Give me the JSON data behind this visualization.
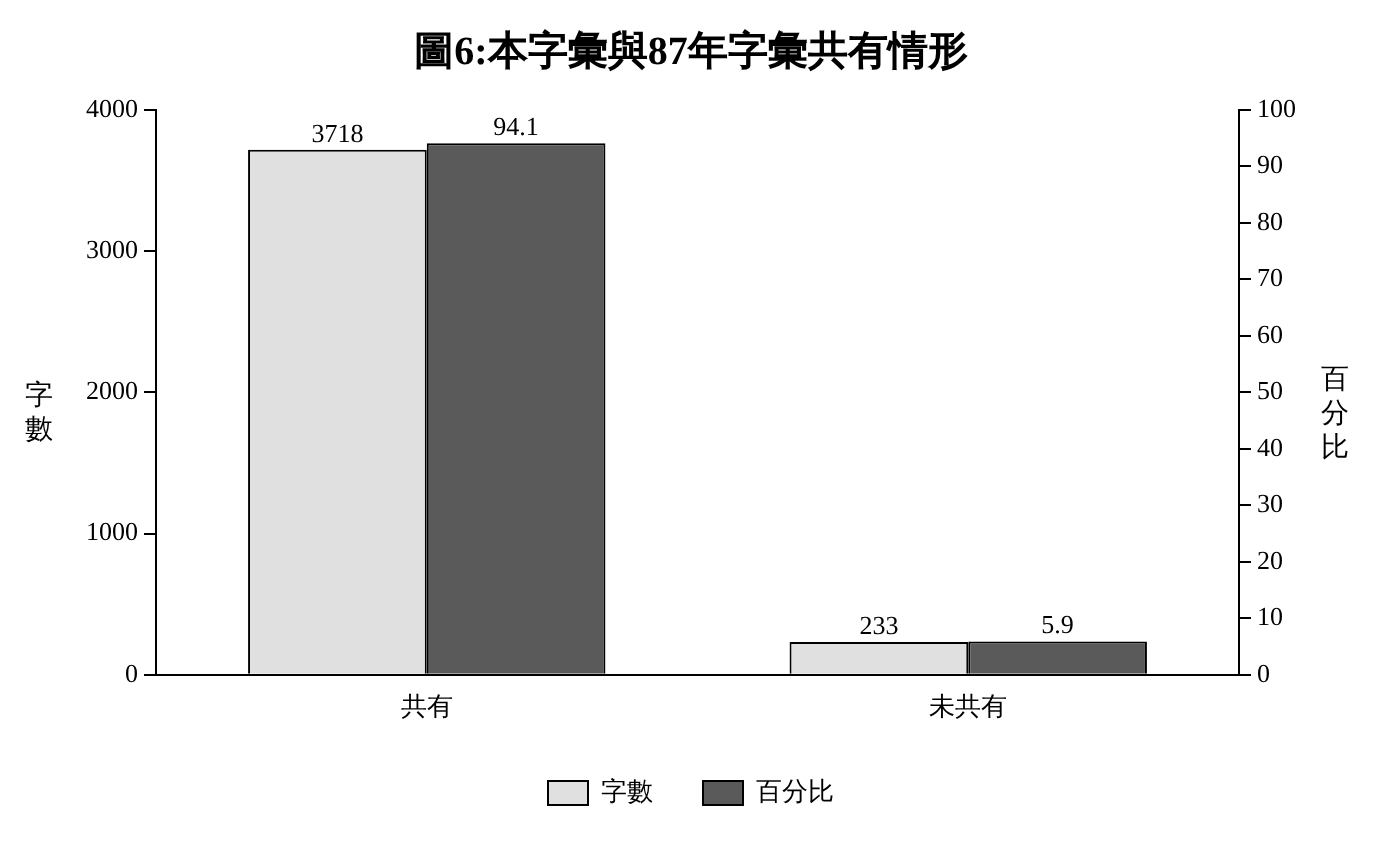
{
  "chart_data": {
    "type": "bar",
    "title": "圖6:本字彙與87年字彙共有情形",
    "ylabel": "字數",
    "y2label": "百分比",
    "categories": [
      "共有",
      "未共有"
    ],
    "series": [
      {
        "name": "字數",
        "color": "#e0e0e0",
        "values": [
          3718,
          233
        ]
      },
      {
        "name": "百分比",
        "color": "#5a5a5a",
        "values": [
          94.1,
          5.9
        ],
        "axis": "y2"
      }
    ],
    "ylim": [
      0,
      4000
    ],
    "yticks": [
      0,
      1000,
      2000,
      3000,
      4000
    ],
    "y2lim": [
      0,
      100
    ],
    "y2ticks": [
      0,
      10,
      20,
      30,
      40,
      50,
      60,
      70,
      80,
      90,
      100
    ],
    "data_labels": true,
    "grid": false,
    "legend": "bottom"
  }
}
